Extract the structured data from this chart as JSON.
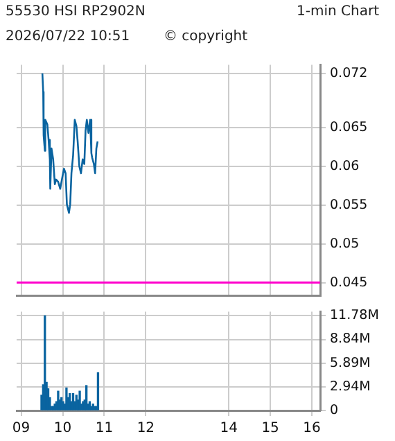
{
  "chart_data": [
    {
      "type": "line",
      "title": "55530 HSI RP2902N",
      "subtitle": "1-min Chart",
      "annotations": [
        "2026/07/22 10:51",
        "© copyright"
      ],
      "x": [
        9.51,
        9.53,
        9.54,
        9.57,
        9.58,
        9.63,
        9.66,
        9.69,
        9.7,
        9.73,
        9.77,
        9.81,
        9.84,
        9.89,
        9.94,
        9.98,
        10.03,
        10.07,
        10.1,
        10.15,
        10.18,
        10.21,
        10.25,
        10.29,
        10.33,
        10.36,
        10.4,
        10.44,
        10.48,
        10.52,
        10.55,
        10.58,
        10.62,
        10.66,
        10.69,
        10.71,
        10.75,
        10.78,
        10.81,
        10.84
      ],
      "series": [
        {
          "color": "#0a64a0",
          "values": [
            0.072,
            0.0696,
            0.064,
            0.062,
            0.066,
            0.0654,
            0.0634,
            0.0609,
            0.0571,
            0.0623,
            0.0609,
            0.0577,
            0.0583,
            0.058,
            0.0571,
            0.0583,
            0.0597,
            0.0591,
            0.0551,
            0.054,
            0.0551,
            0.0591,
            0.0614,
            0.066,
            0.0652,
            0.0632,
            0.06,
            0.0591,
            0.0609,
            0.0603,
            0.0646,
            0.066,
            0.0643,
            0.066,
            0.0617,
            0.0611,
            0.0603,
            0.0591,
            0.0623,
            0.0632
          ]
        }
      ],
      "xlim": [
        8.89,
        16.2
      ],
      "xticks": [
        9,
        10,
        11,
        12,
        14,
        15,
        16
      ],
      "ylim": [
        0.0433,
        0.0731
      ],
      "yticks": [
        0.045,
        0.05,
        0.055,
        0.06,
        0.065,
        0.072
      ],
      "ref_lines": [
        {
          "axis": "y",
          "value": 0.045,
          "color": "#ff00cc"
        }
      ],
      "grid": true,
      "legend": false,
      "marker": "none",
      "line_style": "solid",
      "tick_labels": "y"
    },
    {
      "type": "bar",
      "x": [
        9.49,
        9.53,
        9.57,
        9.61,
        9.65,
        9.69,
        9.73,
        9.77,
        9.81,
        9.85,
        9.89,
        9.93,
        9.97,
        10.01,
        10.05,
        10.09,
        10.13,
        10.17,
        10.21,
        10.25,
        10.29,
        10.33,
        10.37,
        10.41,
        10.45,
        10.49,
        10.53,
        10.57,
        10.61,
        10.65,
        10.69,
        10.73,
        10.77,
        10.81,
        10.85
      ],
      "series": [
        {
          "color": "#0a64a0",
          "values": [
            1.9,
            3.2,
            11.78,
            3.5,
            2.7,
            1.6,
            0.5,
            0.5,
            0.8,
            1.1,
            2.4,
            1.3,
            1.6,
            1.1,
            0.8,
            2.8,
            1.6,
            2.1,
            1.1,
            2.1,
            1.1,
            1.9,
            1.3,
            2.4,
            0.8,
            1.1,
            1.3,
            3.1,
            0.8,
            1.1,
            0.5,
            0.8,
            0.5,
            0.5,
            4.7
          ]
        }
      ],
      "xlim": [
        8.89,
        16.2
      ],
      "xticks": [
        {
          "value": 9,
          "label": "09"
        },
        10,
        11,
        12,
        14,
        15,
        16
      ],
      "ylim": [
        0,
        12.3
      ],
      "yticks": [
        0,
        {
          "value": 2.94,
          "label": "2.94M"
        },
        {
          "value": 5.89,
          "label": "5.89M"
        },
        {
          "value": 8.84,
          "label": "8.84M"
        },
        {
          "value": 11.78,
          "label": "11.78M"
        }
      ],
      "grid": true,
      "legend": false
    }
  ]
}
